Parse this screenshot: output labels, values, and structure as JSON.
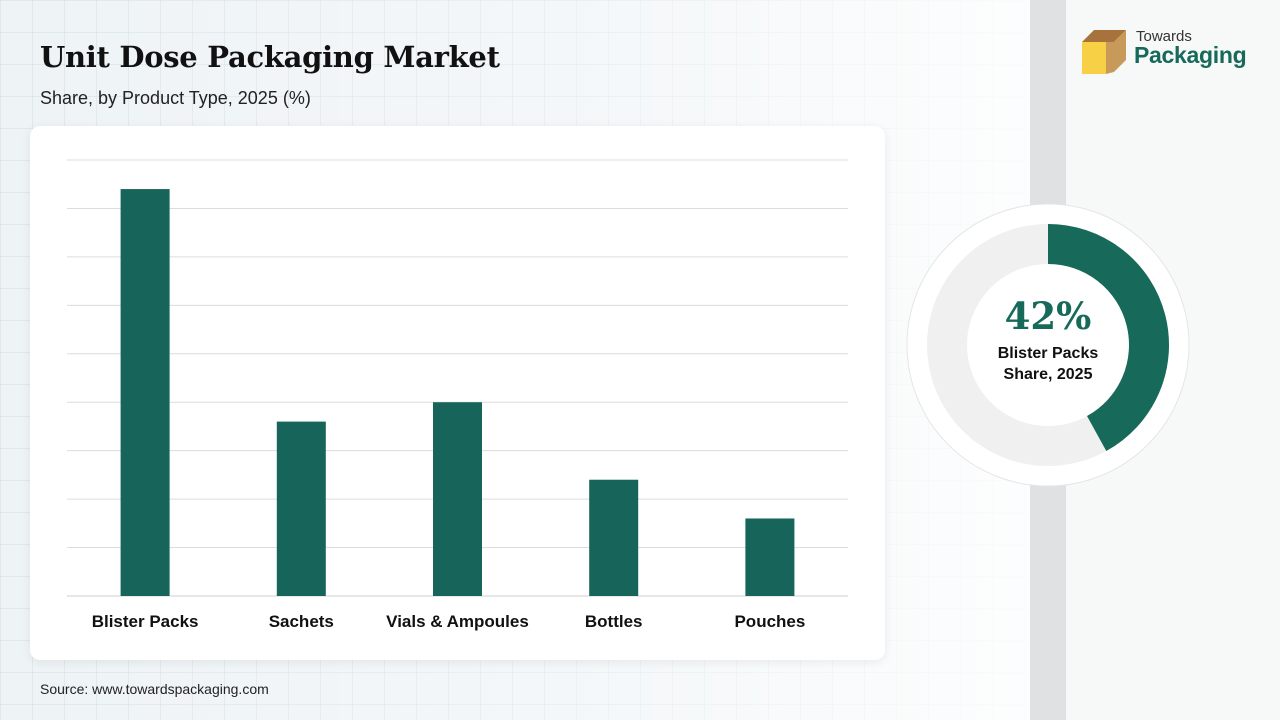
{
  "header": {
    "title": "Unit Dose Packaging Market",
    "subtitle": "Share, by Product Type, 2025 (%)"
  },
  "logo": {
    "line1": "Towards",
    "line2": "Packaging",
    "icon": "box-icon"
  },
  "colors": {
    "bar": "#17645a",
    "accent": "#17695a",
    "donut_track": "#f0f0f0",
    "logo_box_front": "#f7d046",
    "logo_box_top": "#a8723c"
  },
  "chart_data": {
    "type": "bar",
    "categories": [
      "Blister Packs",
      "Sachets",
      "Vials & Ampoules",
      "Bottles",
      "Pouches"
    ],
    "values": [
      42,
      18,
      20,
      12,
      8
    ],
    "ylim": [
      0,
      45
    ],
    "gridlines": 9,
    "grid": true,
    "title": "Unit Dose Packaging Market",
    "xlabel": "",
    "ylabel": ""
  },
  "highlight": {
    "value": 42,
    "percent_label": "42%",
    "label_line1": "Blister Packs",
    "label_line2": "Share, 2025"
  },
  "footer": {
    "source": "Source: www.towardspackaging.com"
  }
}
